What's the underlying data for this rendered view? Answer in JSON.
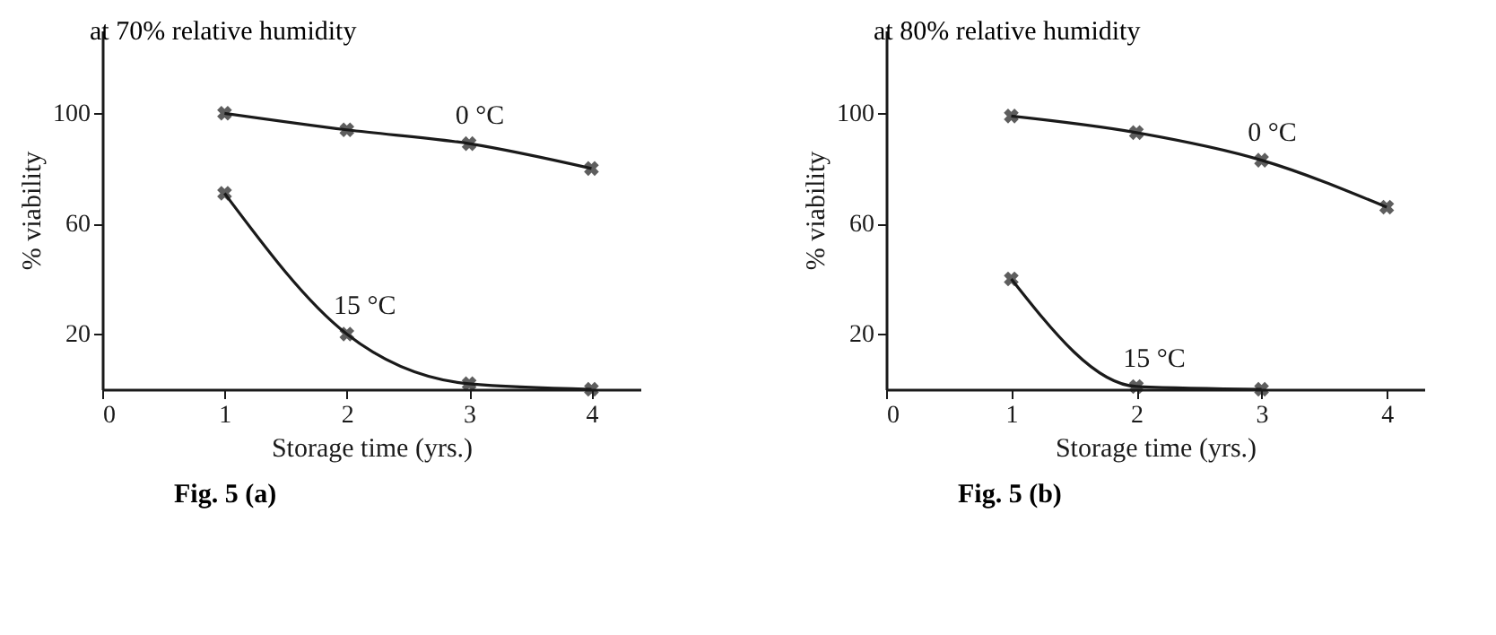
{
  "chart_data": [
    {
      "type": "line",
      "title": "at 70% relative humidity",
      "xlabel": "Storage time (yrs.)",
      "ylabel": "% viability",
      "annotations": [
        "Fig. 5 (a)"
      ],
      "xlim": [
        0,
        4.4
      ],
      "xticks": [
        0,
        1,
        2,
        3,
        4
      ],
      "ylim": [
        0,
        130
      ],
      "yticks": [
        20,
        60,
        100
      ],
      "grid": false,
      "legend": false,
      "marker": "cross",
      "line_style": "solid",
      "x": [
        1,
        2,
        3,
        4
      ],
      "series": [
        {
          "name": "0 °C",
          "color": "#1a1a1a",
          "values": [
            100,
            94,
            89,
            80
          ]
        },
        {
          "name": "15 °C",
          "color": "#1a1a1a",
          "values": [
            71,
            20,
            2,
            0
          ]
        }
      ]
    },
    {
      "type": "line",
      "title": "at 80% relative humidity",
      "xlabel": "Storage time (yrs.)",
      "ylabel": "% viability",
      "annotations": [
        "Fig. 5 (b)"
      ],
      "xlim": [
        0,
        4.3
      ],
      "xticks": [
        0,
        1,
        2,
        3,
        4
      ],
      "ylim": [
        0,
        130
      ],
      "yticks": [
        20,
        60,
        100
      ],
      "grid": false,
      "legend": false,
      "marker": "cross",
      "line_style": "solid",
      "x": [
        1,
        2,
        3,
        4
      ],
      "series": [
        {
          "name": "0 °C",
          "color": "#1a1a1a",
          "values": [
            99,
            93,
            83,
            66
          ]
        },
        {
          "name": "15 °C",
          "color": "#1a1a1a",
          "values": [
            40,
            1,
            0,
            null
          ]
        }
      ]
    }
  ]
}
